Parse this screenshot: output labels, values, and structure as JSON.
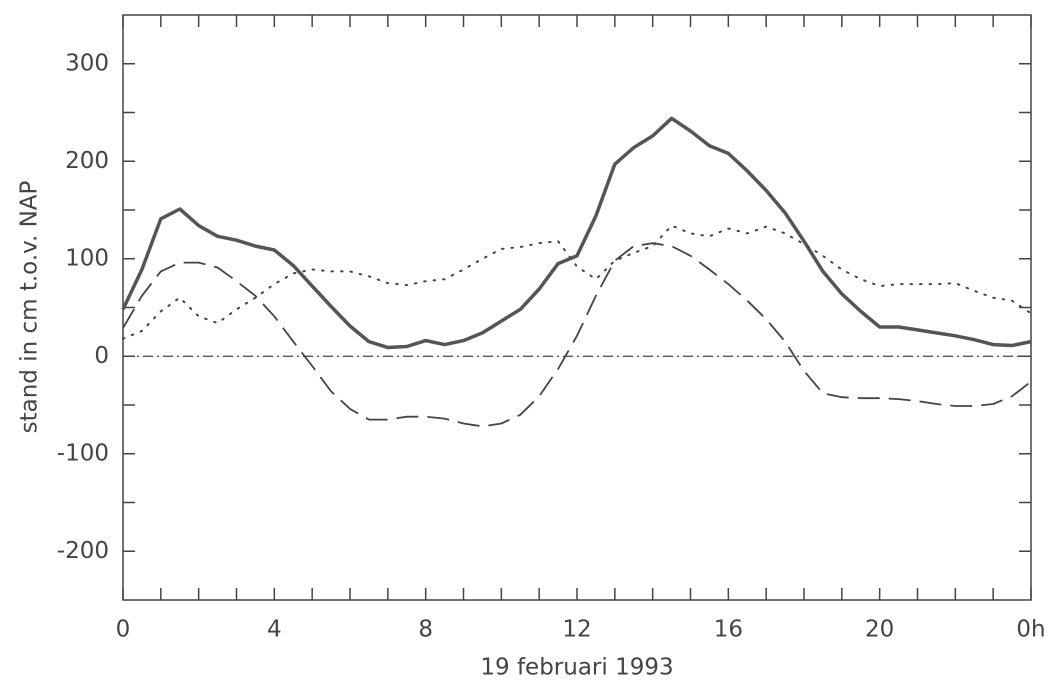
{
  "chart_data": {
    "type": "line",
    "x_label": "19 februari 1993",
    "y_label": "stand in cm t.o.v. NAP",
    "x": [
      0,
      0.5,
      1,
      1.5,
      2,
      2.5,
      3,
      3.5,
      4,
      4.5,
      5,
      5.5,
      6,
      6.5,
      7,
      7.5,
      8,
      8.5,
      9,
      9.5,
      10,
      10.5,
      11,
      11.5,
      12,
      12.5,
      13,
      13.5,
      14,
      14.5,
      15,
      15.5,
      16,
      16.5,
      17,
      17.5,
      18,
      18.5,
      19,
      19.5,
      20,
      20.5,
      21,
      21.5,
      22,
      22.5,
      23,
      23.5,
      24
    ],
    "series": [
      {
        "color": "#555555",
        "style": "solid",
        "values": [
          48,
          89,
          141,
          151,
          134,
          123,
          119,
          113,
          109,
          93,
          72,
          51,
          31,
          15,
          9,
          10,
          16,
          12,
          16,
          24,
          36,
          48,
          69,
          95,
          103,
          144,
          197,
          214,
          226,
          244,
          231,
          216,
          208,
          190,
          170,
          147,
          118,
          87,
          64,
          46,
          30,
          30,
          27,
          24,
          21,
          17,
          12,
          11,
          15
        ]
      },
      {
        "color": "#444444",
        "style": "dotted",
        "values": [
          18,
          26,
          46,
          60,
          41,
          34,
          48,
          60,
          74,
          85,
          89,
          87,
          87,
          82,
          75,
          73,
          77,
          79,
          89,
          100,
          110,
          112,
          116,
          118,
          92,
          79,
          98,
          106,
          113,
          134,
          126,
          123,
          131,
          126,
          133,
          126,
          115,
          103,
          89,
          79,
          72,
          74,
          74,
          74,
          75,
          67,
          60,
          57,
          44
        ]
      },
      {
        "color": "#444444",
        "style": "dashed",
        "values": [
          29,
          62,
          87,
          96,
          96,
          91,
          77,
          62,
          41,
          15,
          -10,
          -36,
          -54,
          -65,
          -65,
          -62,
          -62,
          -64,
          -69,
          -72,
          -69,
          -60,
          -41,
          -13,
          21,
          62,
          98,
          113,
          116,
          113,
          103,
          89,
          74,
          57,
          38,
          15,
          -15,
          -38,
          -42,
          -43,
          -43,
          -44,
          -46,
          -49,
          -51,
          -51,
          -49,
          -41,
          -26
        ]
      }
    ],
    "xlim": [
      0,
      24
    ],
    "xticks": [
      0,
      4,
      8,
      12,
      16,
      20,
      {
        "value": 24,
        "label": "0h"
      }
    ],
    "xminorticks": [
      1,
      2,
      3,
      5,
      6,
      7,
      9,
      10,
      11,
      13,
      14,
      15,
      17,
      18,
      19,
      21,
      22,
      23
    ],
    "ylim": [
      -250,
      350
    ],
    "yticks": [
      300,
      200,
      100,
      0,
      -100,
      -200
    ],
    "yminorticks": [
      250,
      150,
      50,
      -50,
      -150
    ],
    "zero_line": true,
    "grid": false
  }
}
